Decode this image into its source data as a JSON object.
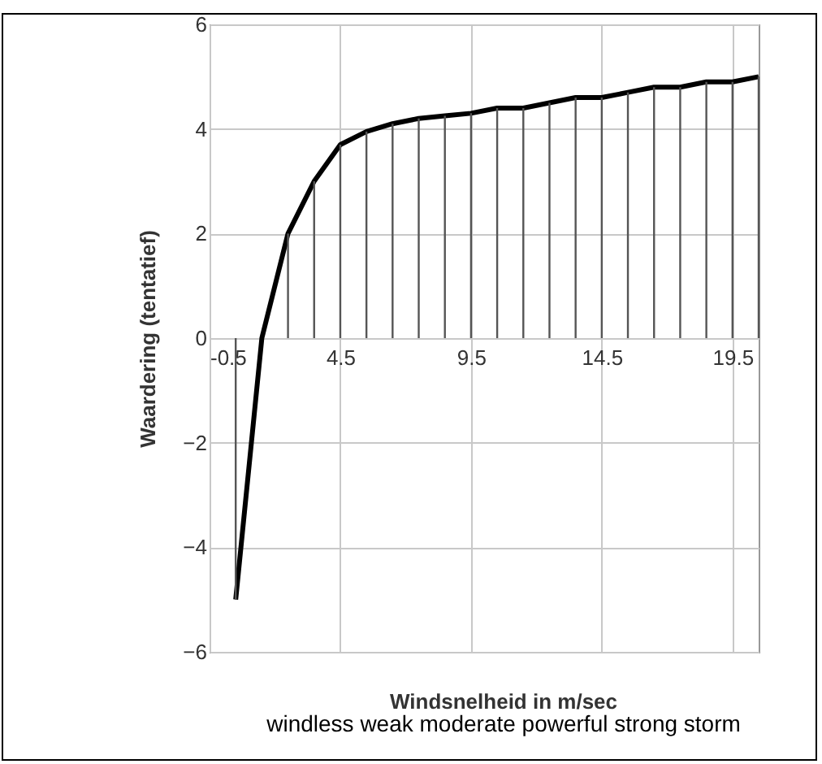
{
  "chart_data": {
    "type": "line",
    "xlabel": "Windsnelheid in m/sec",
    "ylabel": "Waardering (tentatief)",
    "annotations": [
      "windless weak moderate powerful strong storm"
    ],
    "x": [
      0.5,
      1.5,
      2.5,
      3.5,
      4.5,
      5.5,
      6.5,
      7.5,
      8.5,
      9.5,
      10.5,
      11.5,
      12.5,
      13.5,
      14.5,
      15.5,
      16.5,
      17.5,
      18.5,
      19.5,
      20.5
    ],
    "series": [
      {
        "color": "#000000",
        "values": [
          -5,
          0,
          2,
          3,
          3.7,
          3.95,
          4.1,
          4.2,
          4.25,
          4.3,
          4.4,
          4.4,
          4.5,
          4.6,
          4.6,
          4.7,
          4.8,
          4.8,
          4.9,
          4.9,
          5.0
        ]
      },
      {
        "type": "bar",
        "color": "#555555",
        "values": [
          -5,
          0,
          2,
          3,
          3.7,
          3.95,
          4.1,
          4.2,
          4.25,
          4.3,
          4.4,
          4.4,
          4.5,
          4.6,
          4.6,
          4.7,
          4.8,
          4.8,
          4.9,
          4.9,
          5.0
        ]
      }
    ],
    "xlim": [
      -0.5,
      20.5
    ],
    "xticks": [
      -0.5,
      4.5,
      9.5,
      14.5,
      19.5
    ],
    "ylim": [
      -6,
      6
    ],
    "yticks": [
      -6,
      -4,
      -2,
      0,
      2,
      4,
      6
    ],
    "grid": true,
    "marker": "none",
    "line_style": "solid"
  }
}
